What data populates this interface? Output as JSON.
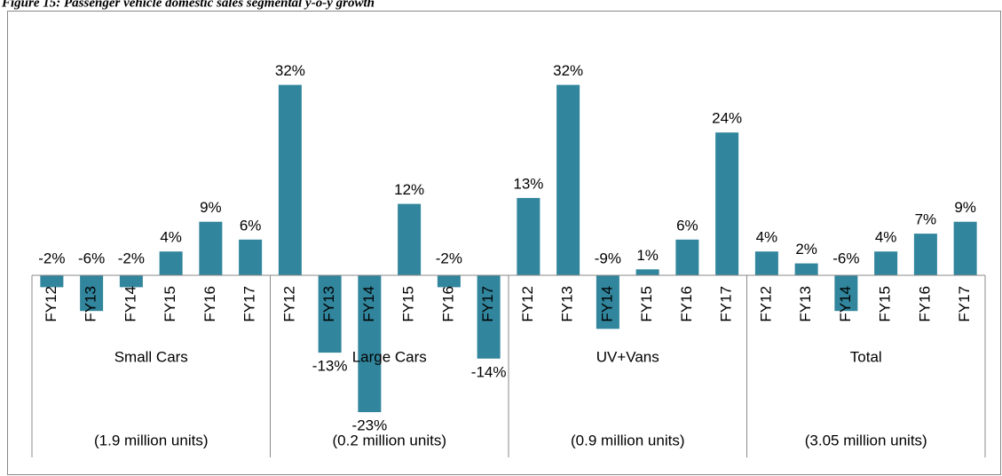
{
  "chart_data": {
    "type": "bar",
    "title": "Figure 15: Passenger vehicle domestic sales segmental y-o-y growth",
    "color": "#31859c",
    "groups": [
      {
        "name": "Small Cars",
        "note": "(1.9 million units)",
        "categories": [
          "FY12",
          "FY13",
          "FY14",
          "FY15",
          "FY16",
          "FY17"
        ],
        "values": [
          -2,
          -6,
          -2,
          4,
          9,
          6
        ],
        "value_labels": [
          "-2%",
          "-6%",
          "-2%",
          "4%",
          "9%",
          "6%"
        ]
      },
      {
        "name": "Large Cars",
        "note": "(0.2 million units)",
        "categories": [
          "FY12",
          "FY13",
          "FY14",
          "FY15",
          "FY16",
          "FY17"
        ],
        "values": [
          32,
          -13,
          -23,
          12,
          -2,
          -14
        ],
        "value_labels": [
          "32%",
          "-13%",
          "-23%",
          "12%",
          "-2%",
          "-14%"
        ]
      },
      {
        "name": "UV+Vans",
        "note": "(0.9 million units)",
        "categories": [
          "FY12",
          "FY13",
          "FY14",
          "FY15",
          "FY16",
          "FY17"
        ],
        "values": [
          13,
          32,
          -9,
          1,
          6,
          24
        ],
        "value_labels": [
          "13%",
          "32%",
          "-9%",
          "1%",
          "6%",
          "24%"
        ]
      },
      {
        "name": "Total",
        "note": "(3.05 million units)",
        "categories": [
          "FY12",
          "FY13",
          "FY14",
          "FY15",
          "FY16",
          "FY17"
        ],
        "values": [
          4,
          2,
          -6,
          4,
          7,
          9
        ],
        "value_labels": [
          "4%",
          "2%",
          "-6%",
          "4%",
          "7%",
          "9%"
        ]
      }
    ]
  }
}
